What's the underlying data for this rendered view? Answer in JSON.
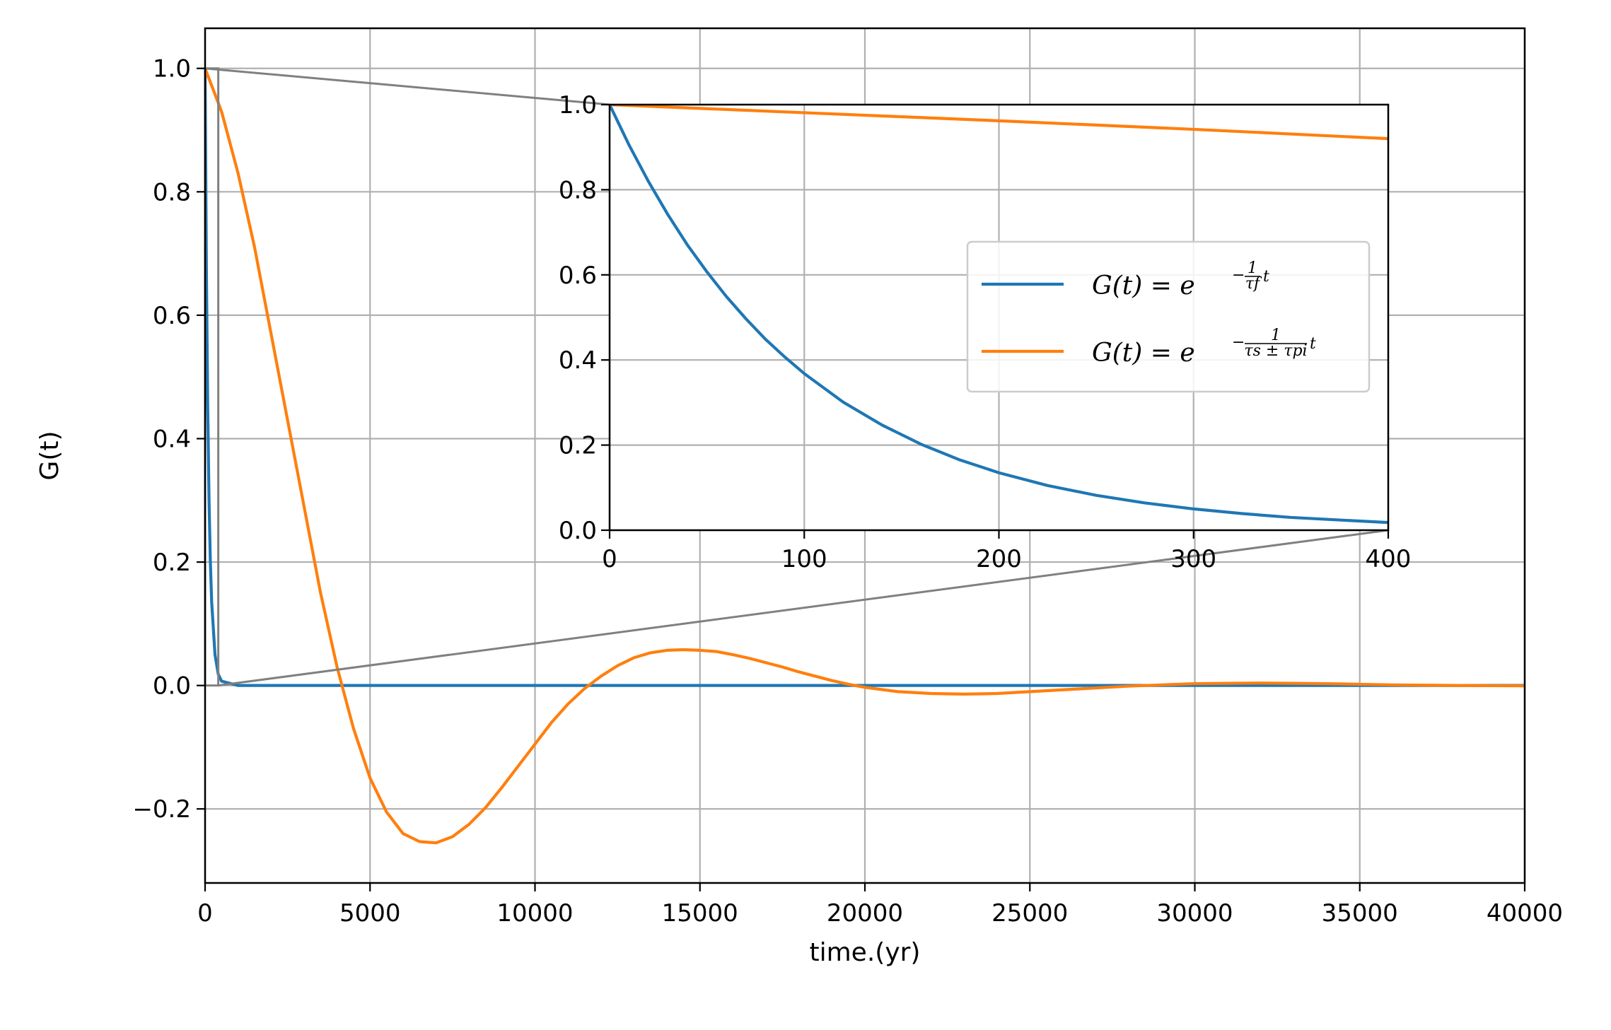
{
  "chart_data": [
    {
      "type": "line",
      "xlabel": "time.(yr)",
      "ylabel": "G(t)",
      "xlim": [
        0,
        40000
      ],
      "ylim": [
        -0.32,
        1.065
      ],
      "xticks": [
        0,
        5000,
        10000,
        15000,
        20000,
        25000,
        30000,
        35000,
        40000
      ],
      "xtick_labels": [
        "0",
        "5000",
        "10000",
        "15000",
        "20000",
        "25000",
        "30000",
        "35000",
        "40000"
      ],
      "yticks": [
        -0.2,
        0.0,
        0.2,
        0.4,
        0.6,
        0.8,
        1.0
      ],
      "ytick_labels": [
        "−0.2",
        "0.0",
        "0.2",
        "0.4",
        "0.6",
        "0.8",
        "1.0"
      ],
      "grid": true,
      "series": [
        {
          "color": "#1f77b4",
          "x": [
            0,
            40,
            80,
            120,
            160,
            200,
            300,
            400,
            500,
            1000,
            5000,
            10000,
            20000,
            30000,
            40000
          ],
          "y": [
            1.0,
            0.67,
            0.45,
            0.3,
            0.2,
            0.135,
            0.05,
            0.018,
            0.007,
            0.0,
            0.0,
            0.0,
            0.0,
            0.0,
            0.0
          ]
        },
        {
          "color": "#ff7f0e",
          "x": [
            0,
            500,
            1000,
            1500,
            2000,
            2500,
            3000,
            3500,
            4000,
            4500,
            5000,
            5500,
            6000,
            6500,
            7000,
            7500,
            8000,
            8500,
            9000,
            9500,
            10000,
            10500,
            11000,
            11500,
            12000,
            12500,
            13000,
            13500,
            14000,
            14500,
            15000,
            15500,
            16000,
            16500,
            17000,
            17500,
            18000,
            18500,
            19000,
            19500,
            20000,
            21000,
            22000,
            23000,
            24000,
            25000,
            26000,
            27000,
            28000,
            29000,
            30000,
            31000,
            32000,
            33000,
            34000,
            35000,
            36000,
            37000,
            38000,
            39000,
            40000
          ],
          "y": [
            1.0,
            0.93,
            0.83,
            0.71,
            0.57,
            0.43,
            0.29,
            0.15,
            0.03,
            -0.07,
            -0.15,
            -0.205,
            -0.24,
            -0.253,
            -0.255,
            -0.245,
            -0.225,
            -0.198,
            -0.165,
            -0.13,
            -0.095,
            -0.06,
            -0.03,
            -0.005,
            0.015,
            0.032,
            0.045,
            0.053,
            0.057,
            0.058,
            0.057,
            0.055,
            0.05,
            0.044,
            0.037,
            0.03,
            0.022,
            0.015,
            0.008,
            0.002,
            -0.003,
            -0.01,
            -0.013,
            -0.014,
            -0.013,
            -0.01,
            -0.007,
            -0.004,
            -0.001,
            0.001,
            0.003,
            0.0035,
            0.004,
            0.0035,
            0.003,
            0.002,
            0.001,
            0.0005,
            0.0,
            -0.0003,
            -0.0005
          ]
        }
      ]
    },
    {
      "type": "line",
      "inset": true,
      "xlim": [
        0,
        400
      ],
      "ylim": [
        0,
        1.0
      ],
      "xticks": [
        0,
        100,
        200,
        300,
        400
      ],
      "xtick_labels": [
        "0",
        "100",
        "200",
        "300",
        "400"
      ],
      "yticks": [
        0.0,
        0.2,
        0.4,
        0.6,
        0.8,
        1.0
      ],
      "ytick_labels": [
        "0.0",
        "0.2",
        "0.4",
        "0.6",
        "0.8",
        "1.0"
      ],
      "grid": true,
      "legend_position": "right",
      "series": [
        {
          "color": "#1f77b4",
          "legend": {
            "lhs": "G(t) = e",
            "exp_prefix": "−",
            "frac_num": "1",
            "frac_den": "τf",
            "suffix": "t"
          },
          "x": [
            0,
            10,
            20,
            30,
            40,
            50,
            60,
            70,
            80,
            90,
            100,
            120,
            140,
            160,
            180,
            200,
            225,
            250,
            275,
            300,
            325,
            350,
            375,
            400
          ],
          "y": [
            1.0,
            0.905,
            0.819,
            0.741,
            0.67,
            0.607,
            0.549,
            0.497,
            0.449,
            0.407,
            0.368,
            0.301,
            0.247,
            0.202,
            0.165,
            0.135,
            0.105,
            0.082,
            0.064,
            0.05,
            0.039,
            0.03,
            0.024,
            0.018
          ]
        },
        {
          "color": "#ff7f0e",
          "legend": {
            "lhs": "G(t) = e",
            "exp_prefix": "−",
            "frac_num": "1",
            "frac_den": "τs ± τpi",
            "suffix": "t"
          },
          "x": [
            0,
            50,
            100,
            150,
            200,
            250,
            300,
            350,
            400
          ],
          "y": [
            1.0,
            0.9905,
            0.981,
            0.9715,
            0.962,
            0.952,
            0.942,
            0.931,
            0.92
          ]
        }
      ]
    }
  ]
}
